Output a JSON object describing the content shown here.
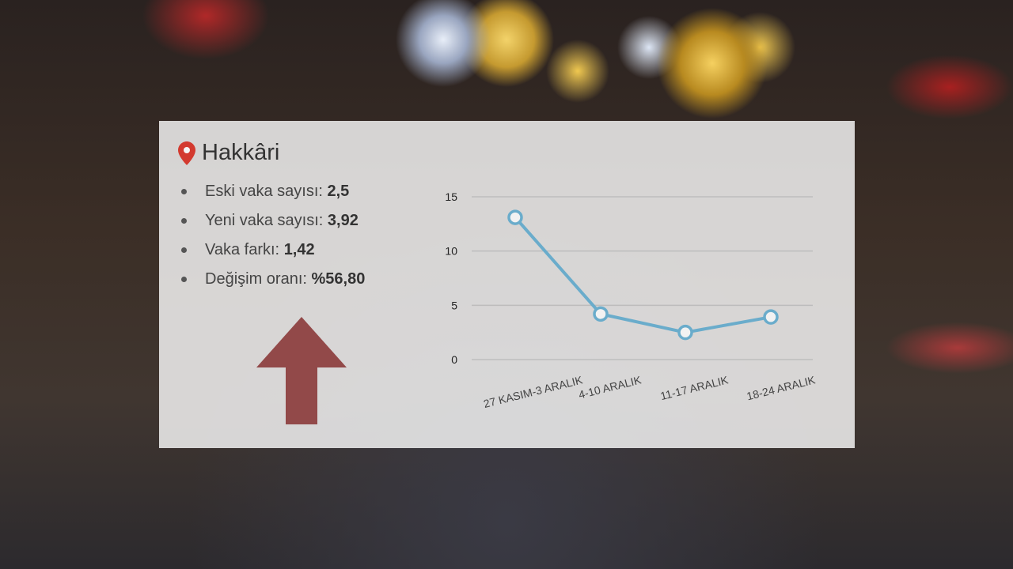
{
  "location": "Hakkâri",
  "stats": [
    {
      "label": "Eski vaka sayısı:",
      "value": "2,5"
    },
    {
      "label": "Yeni vaka sayısı:",
      "value": "3,92"
    },
    {
      "label": "Vaka farkı:",
      "value": "1,42"
    },
    {
      "label": "Değişim oranı:",
      "value": "%56,80"
    }
  ],
  "trend": "up",
  "colors": {
    "line": "#6aaccb",
    "arrow": "#8b3a3a",
    "pin": "#d33a2f"
  },
  "chart_data": {
    "type": "line",
    "categories": [
      "27 KASIM-3 ARALIK",
      "4-10 ARALIK",
      "11-17 ARALIK",
      "18-24 ARALIK"
    ],
    "values": [
      13.1,
      4.2,
      2.5,
      3.92
    ],
    "ylim": [
      0,
      15
    ],
    "yticks": [
      "0",
      "5",
      "10",
      "15"
    ],
    "grid": true
  }
}
